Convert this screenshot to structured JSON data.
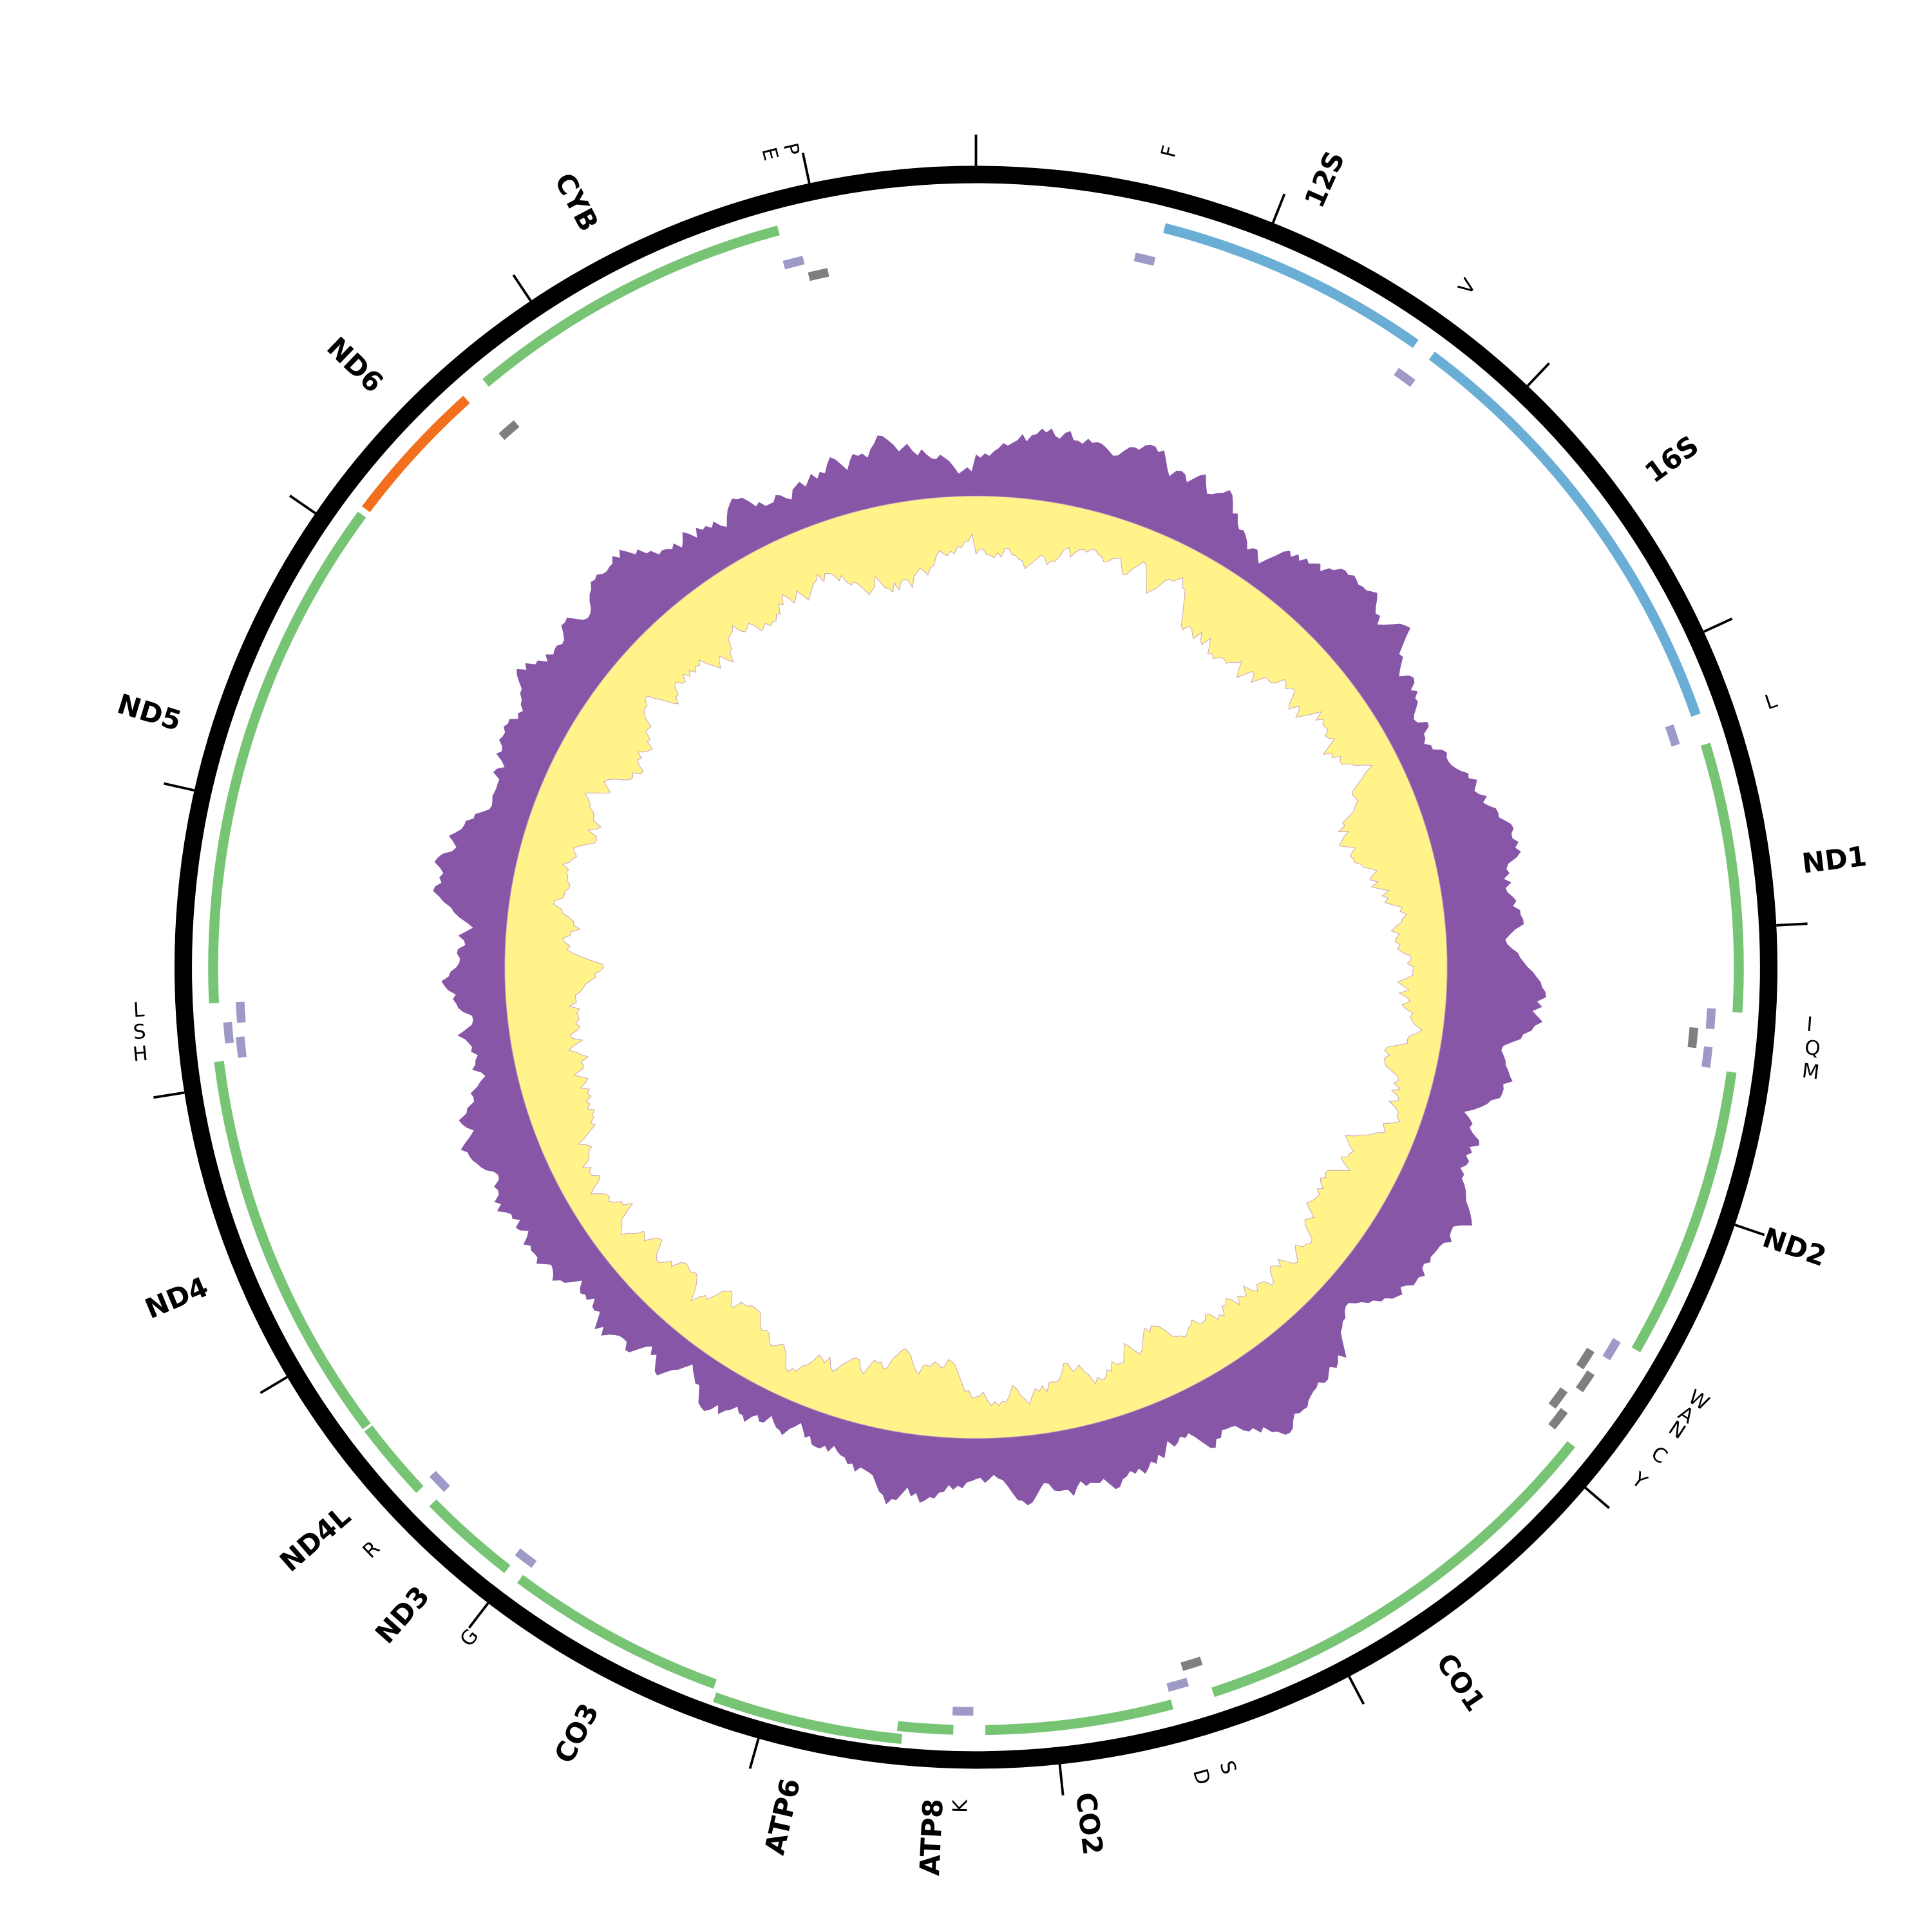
{
  "genes": [
    "12S",
    "16S",
    "ND1",
    "ND2",
    "CO1",
    "CO2",
    "ATP8",
    "ATP6",
    "CO3",
    "ND3",
    "ND4L",
    "ND4",
    "ND5",
    "ND6",
    "CYB"
  ],
  "trnas": [
    "F",
    "V",
    "L",
    "I",
    "Q",
    "M",
    "W",
    "A",
    "N",
    "C",
    "Y",
    "D",
    "S",
    "K",
    "G",
    "R",
    "H",
    "S",
    "L",
    "E",
    "P"
  ]
}
